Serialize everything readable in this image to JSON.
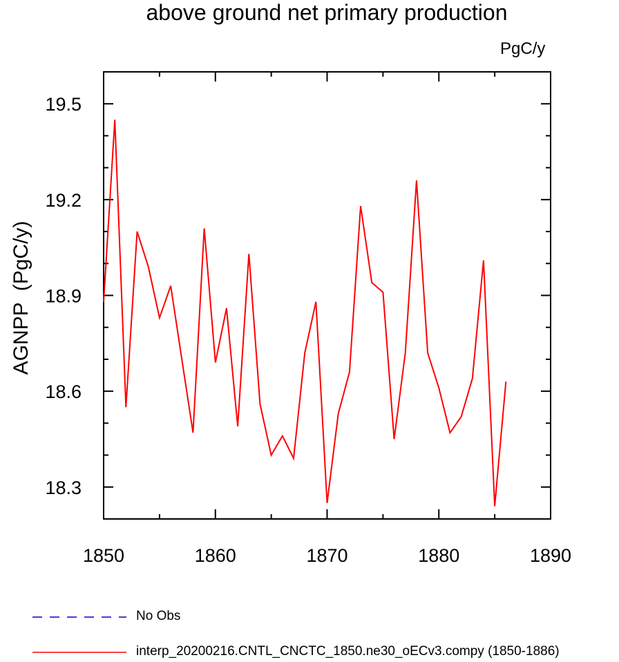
{
  "chart_data": {
    "type": "line",
    "title": "above ground net primary production",
    "units_label": "PgC/y",
    "ylabel": "AGNPP  (PgC/y)",
    "xlabel": "",
    "xlim": [
      1850,
      1890
    ],
    "ylim": [
      18.2,
      19.6
    ],
    "x_ticks": [
      1850,
      1860,
      1870,
      1880,
      1890
    ],
    "y_ticks": [
      18.3,
      18.6,
      18.9,
      19.2,
      19.5
    ],
    "grid": false,
    "legend_position": "bottom-left",
    "series": [
      {
        "name": "interp_20200216.CNTL_CNCTC_1850.ne30_oECv3.compy (1850-1886)",
        "color": "#ff0000",
        "line_style": "solid",
        "x": [
          1850,
          1851,
          1852,
          1853,
          1854,
          1855,
          1856,
          1857,
          1858,
          1859,
          1860,
          1861,
          1862,
          1863,
          1864,
          1865,
          1866,
          1867,
          1868,
          1869,
          1870,
          1871,
          1872,
          1873,
          1874,
          1875,
          1876,
          1877,
          1878,
          1879,
          1880,
          1881,
          1882,
          1883,
          1884,
          1885,
          1886
        ],
        "values": [
          18.88,
          19.45,
          18.55,
          19.1,
          18.99,
          18.83,
          18.93,
          18.7,
          18.47,
          19.11,
          18.69,
          18.86,
          18.49,
          19.03,
          18.56,
          18.4,
          18.46,
          18.39,
          18.72,
          18.88,
          18.25,
          18.53,
          18.66,
          19.18,
          18.94,
          18.91,
          18.45,
          18.72,
          19.26,
          18.72,
          18.61,
          18.47,
          18.52,
          18.64,
          19.01,
          18.24,
          18.63
        ]
      },
      {
        "name": "No Obs",
        "color": "#0000cc",
        "line_style": "dashed",
        "x": [],
        "values": []
      }
    ]
  }
}
